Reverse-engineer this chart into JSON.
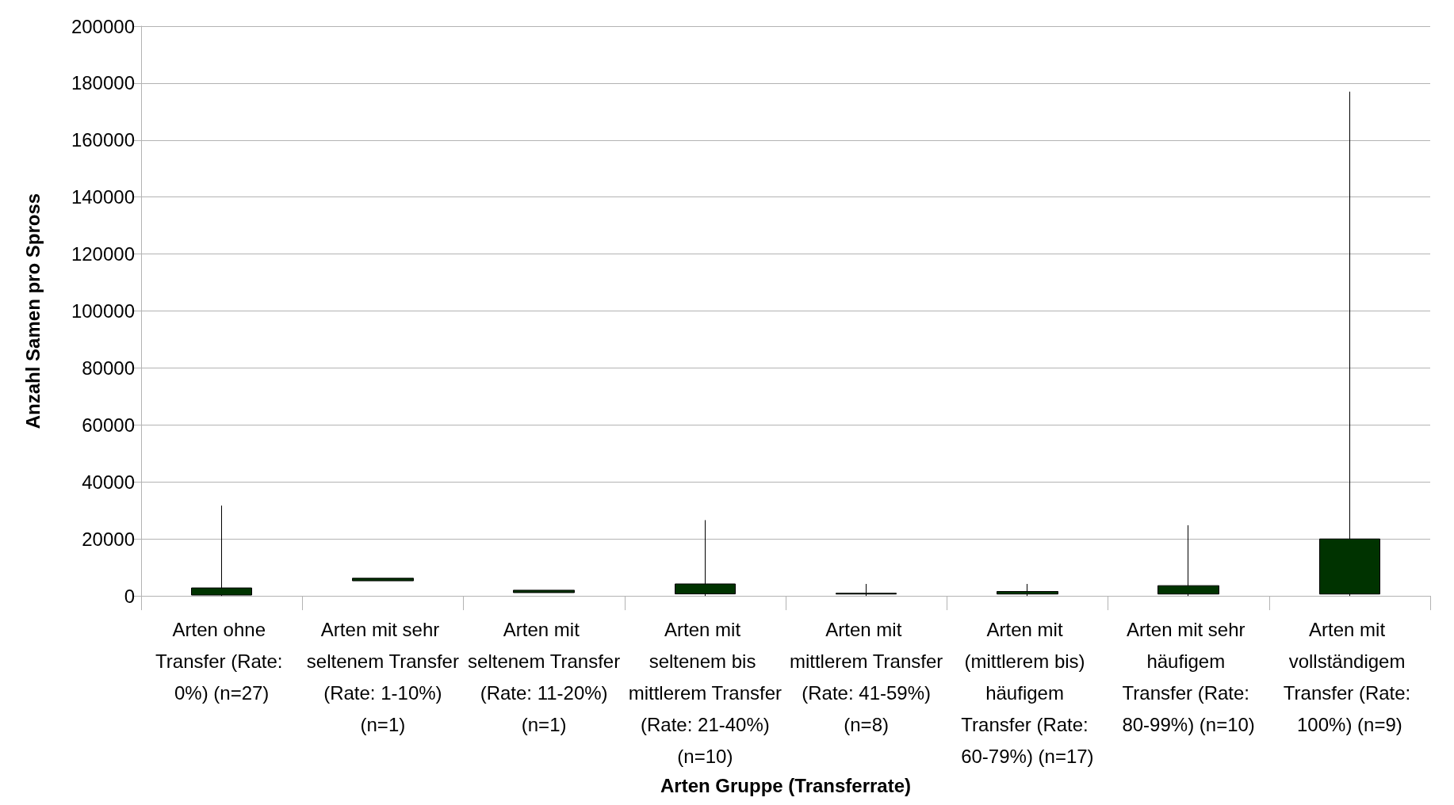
{
  "chart_data": {
    "type": "candlestick",
    "xlabel": "Arten Gruppe (Transferrate)",
    "ylabel": "Anzahl Samen pro Spross",
    "categories": [
      "Arten ohne Transfer (Rate: 0%) (n=27)",
      "Arten mit sehr seltenem Transfer (Rate: 1-10%) (n=1)",
      "Arten mit seltenem Transfer (Rate: 11-20%) (n=1)",
      "Arten mit seltenem bis mittlerem Transfer (Rate: 21-40%) (n=10)",
      "Arten mit mittlerem Transfer (Rate: 41-59%) (n=8)",
      "Arten mit (mittlerem bis) häufigem Transfer (Rate: 60-79%) (n=17)",
      "Arten mit sehr häufigem Transfer (Rate: 80-99%) (n=10)",
      "Arten mit vollständigem Transfer (Rate: 100%) (n=9)"
    ],
    "ohlc": [
      [
        300,
        31700,
        0,
        2800
      ],
      [
        5300,
        6200,
        5300,
        6200
      ],
      [
        1150,
        2000,
        1150,
        2000
      ],
      [
        700,
        26600,
        0,
        4200
      ],
      [
        650,
        4200,
        0,
        940
      ],
      [
        650,
        4200,
        0,
        1560
      ],
      [
        650,
        24800,
        0,
        3600
      ],
      [
        650,
        177000,
        0,
        20000
      ]
    ],
    "color": "#003300",
    "ylim": [
      0,
      200000
    ],
    "yticks": [
      0,
      20000,
      40000,
      60000,
      80000,
      100000,
      120000,
      140000,
      160000,
      180000,
      200000
    ],
    "grid": "y"
  }
}
